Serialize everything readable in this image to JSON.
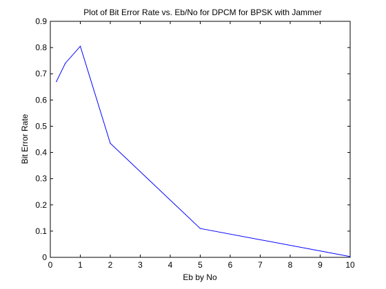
{
  "chart_data": {
    "type": "line",
    "title": "Plot of Bit Error Rate vs. Eb/No for DPCM for BPSK with Jammer",
    "xlabel": "Eb by No",
    "ylabel": "Bit Error Rate",
    "xlim": [
      0,
      10
    ],
    "ylim": [
      0,
      0.9
    ],
    "xticks": [
      0,
      1,
      2,
      3,
      4,
      5,
      6,
      7,
      8,
      9,
      10
    ],
    "yticks": [
      0,
      0.1,
      0.2,
      0.3,
      0.4,
      0.5,
      0.6,
      0.7,
      0.8,
      0.9
    ],
    "xtick_labels": [
      "0",
      "1",
      "2",
      "3",
      "4",
      "5",
      "6",
      "7",
      "8",
      "9",
      "10"
    ],
    "ytick_labels": [
      "0",
      "0.1",
      "0.2",
      "0.3",
      "0.4",
      "0.5",
      "0.6",
      "0.7",
      "0.8",
      "0.9"
    ],
    "grid": false,
    "legend": "none",
    "series": [
      {
        "color": "#0000ff",
        "x": [
          0.2,
          0.5,
          1,
          2,
          5,
          10
        ],
        "y": [
          0.67,
          0.74,
          0.805,
          0.435,
          0.11,
          0.003
        ]
      }
    ]
  },
  "colors": {
    "line": "#0000ff",
    "axes": "#000000",
    "background": "#ffffff"
  }
}
